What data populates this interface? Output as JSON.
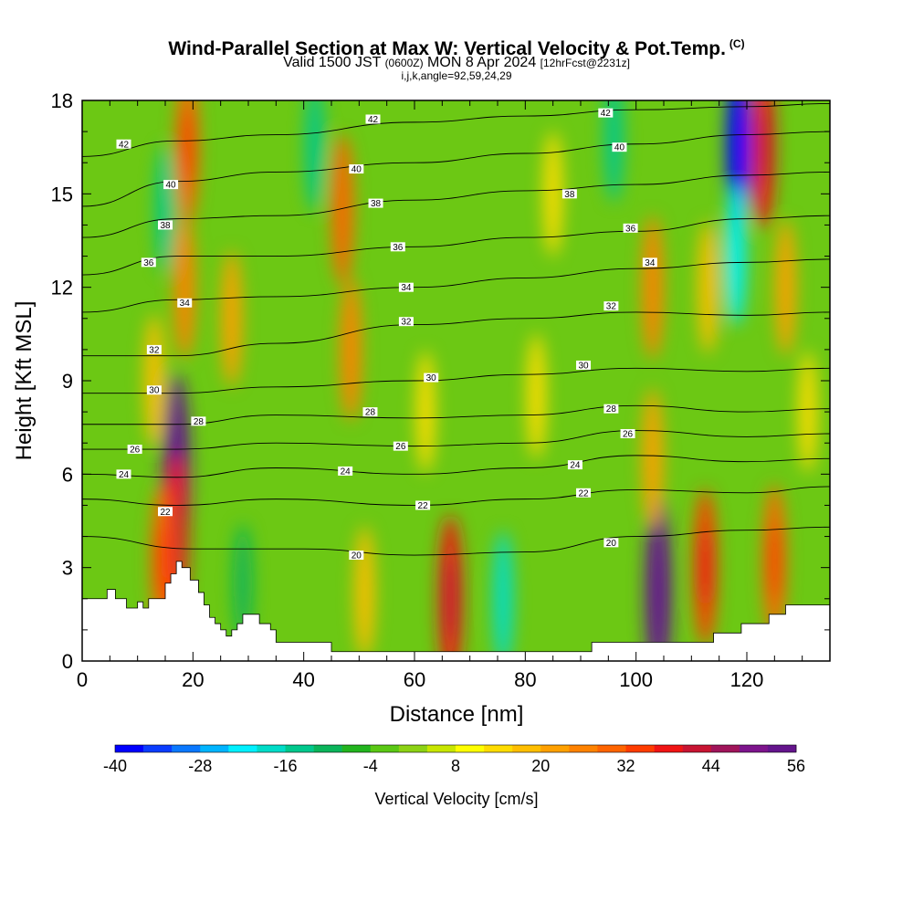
{
  "header": {
    "title": "Wind-Parallel Section at Max W: Vertical Velocity & Pot.Temp.",
    "copyright": "(C)",
    "valid_prefix": "Valid 1500 JST",
    "valid_utc": "(0600Z)",
    "valid_date": "MON 8 Apr 2024",
    "forecast": "[12hrFcst@2231z]",
    "indices": "i,j,k,angle=92,59,24,29"
  },
  "colors": {
    "scale": [
      "#0000ff",
      "#0a3cff",
      "#0a78ff",
      "#00b4ff",
      "#00f0ff",
      "#00dcc8",
      "#00c88c",
      "#0ab45a",
      "#22b41e",
      "#5ac814",
      "#8cd214",
      "#c8e600",
      "#ffff00",
      "#ffdc00",
      "#ffbe00",
      "#ffa000",
      "#ff8200",
      "#ff6400",
      "#ff3c00",
      "#f01414",
      "#c81432",
      "#a0145a",
      "#7d148c",
      "#64148c"
    ],
    "terrain": "#ffffff",
    "contour": "#000000"
  },
  "chart_data": {
    "type": "heatmap",
    "title": "Wind-Parallel Section at Max W: Vertical Velocity & Pot.Temp.",
    "xlabel": "Distance [nm]",
    "ylabel": "Height [Kft MSL]",
    "xlim": [
      0,
      135
    ],
    "ylim": [
      0,
      18
    ],
    "x_ticks": [
      "0",
      "20",
      "40",
      "60",
      "80",
      "100",
      "120"
    ],
    "y_ticks": [
      "0",
      "3",
      "6",
      "9",
      "12",
      "15",
      "18"
    ],
    "colorbar": {
      "label": "Vertical Velocity [cm/s]",
      "min": -40,
      "max": 56,
      "step": 4,
      "tick_labels": [
        "-40",
        "-28",
        "-16",
        "-4",
        "8",
        "20",
        "32",
        "44",
        "56"
      ]
    },
    "velocity_cells": [
      {
        "x": 17,
        "y": 6.0,
        "w": 56
      },
      {
        "x": 17,
        "y": 4.0,
        "w": 36
      },
      {
        "x": 14.5,
        "y": 3.2,
        "w": 30
      },
      {
        "x": 18.5,
        "y": 12.0,
        "w": 24
      },
      {
        "x": 19,
        "y": 16.5,
        "w": 30
      },
      {
        "x": 13,
        "y": 9.0,
        "w": 18
      },
      {
        "x": 15,
        "y": 14.5,
        "w": -16
      },
      {
        "x": 27,
        "y": 11.0,
        "w": 20
      },
      {
        "x": 29,
        "y": 2.5,
        "w": -10
      },
      {
        "x": 42,
        "y": 16.5,
        "w": -16
      },
      {
        "x": 47,
        "y": 14.5,
        "w": 28
      },
      {
        "x": 48.5,
        "y": 10.0,
        "w": 24
      },
      {
        "x": 51,
        "y": 2.2,
        "w": 18
      },
      {
        "x": 66.5,
        "y": 2.0,
        "w": 38
      },
      {
        "x": 62,
        "y": 8.0,
        "w": 12
      },
      {
        "x": 76,
        "y": 2.0,
        "w": -20
      },
      {
        "x": 82,
        "y": 8.5,
        "w": 14
      },
      {
        "x": 85,
        "y": 15.0,
        "w": 14
      },
      {
        "x": 96,
        "y": 16.8,
        "w": -16
      },
      {
        "x": 104,
        "y": 2.2,
        "w": 52
      },
      {
        "x": 103,
        "y": 6.5,
        "w": 22
      },
      {
        "x": 103,
        "y": 12.0,
        "w": 24
      },
      {
        "x": 112.5,
        "y": 3.0,
        "w": 32
      },
      {
        "x": 113,
        "y": 12.0,
        "w": 18
      },
      {
        "x": 118.5,
        "y": 16.5,
        "w": -40
      },
      {
        "x": 118,
        "y": 13.0,
        "w": -22
      },
      {
        "x": 123,
        "y": 16.5,
        "w": 36
      },
      {
        "x": 125,
        "y": 3.2,
        "w": 30
      },
      {
        "x": 127,
        "y": 12.0,
        "w": 20
      },
      {
        "x": 131,
        "y": 8.0,
        "w": 12
      }
    ],
    "terrain": {
      "x": [
        0,
        4.5,
        4.5,
        6,
        6,
        8,
        8,
        10,
        10,
        11,
        11,
        12,
        12,
        15,
        15,
        16,
        16,
        17,
        17,
        18,
        18,
        19.5,
        19.5,
        21,
        21,
        22,
        22,
        23,
        23,
        24,
        24,
        25,
        25,
        26,
        26,
        27,
        27,
        28,
        28,
        29,
        29,
        32,
        32,
        34,
        34,
        35,
        35,
        40,
        40,
        45,
        45,
        67,
        67,
        68,
        68,
        70,
        70,
        75,
        75,
        80,
        80,
        86,
        86,
        89,
        89,
        92,
        92,
        114,
        114,
        116,
        116,
        119,
        119,
        124,
        124,
        126,
        126,
        127,
        127,
        128,
        128,
        130,
        130,
        135
      ],
      "y": [
        2.0,
        2.0,
        2.3,
        2.3,
        2.0,
        2.0,
        1.7,
        1.7,
        1.9,
        1.9,
        1.7,
        1.7,
        2.0,
        2.0,
        2.5,
        2.5,
        2.8,
        2.8,
        3.2,
        3.2,
        3.0,
        3.0,
        2.6,
        2.6,
        2.2,
        2.2,
        1.8,
        1.8,
        1.4,
        1.4,
        1.2,
        1.2,
        1.0,
        1.0,
        0.8,
        0.8,
        1.0,
        1.0,
        1.2,
        1.2,
        1.5,
        1.5,
        1.2,
        1.2,
        1.0,
        1.0,
        0.6,
        0.6,
        0.6,
        0.6,
        0.3,
        0.3,
        0.3,
        0.3,
        0.3,
        0.3,
        0.3,
        0.3,
        0.3,
        0.3,
        0.3,
        0.3,
        0.3,
        0.3,
        0.3,
        0.3,
        0.6,
        0.6,
        0.9,
        0.9,
        0.9,
        0.9,
        1.2,
        1.2,
        1.5,
        1.5,
        1.5,
        1.5,
        1.8,
        1.8,
        1.8,
        1.8,
        1.8,
        1.8
      ]
    },
    "potential_temperature": [
      {
        "theta": 20,
        "points": [
          [
            0,
            4.0
          ],
          [
            20,
            3.6
          ],
          [
            40,
            3.6
          ],
          [
            60,
            3.4
          ],
          [
            80,
            3.5
          ],
          [
            100,
            4.0
          ],
          [
            120,
            4.2
          ],
          [
            135,
            4.3
          ]
        ]
      },
      {
        "theta": 22,
        "points": [
          [
            0,
            5.2
          ],
          [
            17,
            5.0
          ],
          [
            35,
            5.2
          ],
          [
            60,
            5.0
          ],
          [
            80,
            5.2
          ],
          [
            100,
            5.5
          ],
          [
            120,
            5.4
          ],
          [
            135,
            5.6
          ]
        ]
      },
      {
        "theta": 24,
        "points": [
          [
            0,
            6.0
          ],
          [
            17,
            5.9
          ],
          [
            35,
            6.2
          ],
          [
            60,
            6.0
          ],
          [
            80,
            6.2
          ],
          [
            100,
            6.6
          ],
          [
            120,
            6.4
          ],
          [
            135,
            6.5
          ]
        ]
      },
      {
        "theta": 26,
        "points": [
          [
            0,
            6.8
          ],
          [
            17,
            6.8
          ],
          [
            35,
            7.0
          ],
          [
            60,
            6.9
          ],
          [
            80,
            7.0
          ],
          [
            100,
            7.4
          ],
          [
            120,
            7.2
          ],
          [
            135,
            7.3
          ]
        ]
      },
      {
        "theta": 28,
        "points": [
          [
            0,
            7.6
          ],
          [
            17,
            7.6
          ],
          [
            35,
            7.9
          ],
          [
            60,
            7.8
          ],
          [
            80,
            7.9
          ],
          [
            100,
            8.2
          ],
          [
            120,
            8.0
          ],
          [
            135,
            8.1
          ]
        ]
      },
      {
        "theta": 30,
        "points": [
          [
            0,
            8.6
          ],
          [
            17,
            8.6
          ],
          [
            35,
            8.8
          ],
          [
            60,
            9.0
          ],
          [
            80,
            9.2
          ],
          [
            100,
            9.4
          ],
          [
            120,
            9.3
          ],
          [
            135,
            9.4
          ]
        ]
      },
      {
        "theta": 32,
        "points": [
          [
            0,
            9.8
          ],
          [
            17,
            9.8
          ],
          [
            35,
            10.2
          ],
          [
            60,
            10.8
          ],
          [
            80,
            11.0
          ],
          [
            100,
            11.2
          ],
          [
            120,
            11.1
          ],
          [
            135,
            11.2
          ]
        ]
      },
      {
        "theta": 34,
        "points": [
          [
            0,
            11.2
          ],
          [
            17,
            11.6
          ],
          [
            35,
            11.7
          ],
          [
            60,
            12.0
          ],
          [
            80,
            12.3
          ],
          [
            100,
            12.6
          ],
          [
            120,
            12.8
          ],
          [
            135,
            12.9
          ]
        ]
      },
      {
        "theta": 36,
        "points": [
          [
            0,
            12.4
          ],
          [
            17,
            13.0
          ],
          [
            35,
            13.0
          ],
          [
            60,
            13.3
          ],
          [
            80,
            13.6
          ],
          [
            100,
            13.8
          ],
          [
            120,
            14.2
          ],
          [
            135,
            14.3
          ]
        ]
      },
      {
        "theta": 38,
        "points": [
          [
            0,
            13.6
          ],
          [
            17,
            14.2
          ],
          [
            35,
            14.3
          ],
          [
            60,
            14.8
          ],
          [
            80,
            15.1
          ],
          [
            100,
            15.3
          ],
          [
            120,
            15.6
          ],
          [
            135,
            15.7
          ]
        ]
      },
      {
        "theta": 40,
        "points": [
          [
            0,
            14.6
          ],
          [
            17,
            15.4
          ],
          [
            35,
            15.7
          ],
          [
            60,
            16.0
          ],
          [
            80,
            16.3
          ],
          [
            100,
            16.6
          ],
          [
            120,
            16.9
          ],
          [
            135,
            17.0
          ]
        ]
      },
      {
        "theta": 42,
        "points": [
          [
            0,
            16.2
          ],
          [
            17,
            16.7
          ],
          [
            35,
            16.9
          ],
          [
            60,
            17.3
          ],
          [
            80,
            17.5
          ],
          [
            100,
            17.7
          ],
          [
            120,
            17.8
          ],
          [
            135,
            17.9
          ]
        ]
      }
    ],
    "contour_labels": [
      {
        "x": 7.5,
        "y": 16.6,
        "text": "42"
      },
      {
        "x": 52.5,
        "y": 17.4,
        "text": "42"
      },
      {
        "x": 94.5,
        "y": 17.6,
        "text": "42"
      },
      {
        "x": 16,
        "y": 15.3,
        "text": "40"
      },
      {
        "x": 49.5,
        "y": 15.8,
        "text": "40"
      },
      {
        "x": 97,
        "y": 16.5,
        "text": "40"
      },
      {
        "x": 15,
        "y": 14.0,
        "text": "38"
      },
      {
        "x": 53,
        "y": 14.7,
        "text": "38"
      },
      {
        "x": 88,
        "y": 15.0,
        "text": "38"
      },
      {
        "x": 12,
        "y": 12.8,
        "text": "36"
      },
      {
        "x": 57,
        "y": 13.3,
        "text": "36"
      },
      {
        "x": 99,
        "y": 13.9,
        "text": "36"
      },
      {
        "x": 18.5,
        "y": 11.5,
        "text": "34"
      },
      {
        "x": 58.5,
        "y": 12.0,
        "text": "34"
      },
      {
        "x": 102.5,
        "y": 12.8,
        "text": "34"
      },
      {
        "x": 13,
        "y": 10.0,
        "text": "32"
      },
      {
        "x": 58.5,
        "y": 10.9,
        "text": "32"
      },
      {
        "x": 95.5,
        "y": 11.4,
        "text": "32"
      },
      {
        "x": 13,
        "y": 8.7,
        "text": "30"
      },
      {
        "x": 63,
        "y": 9.1,
        "text": "30"
      },
      {
        "x": 90.5,
        "y": 9.5,
        "text": "30"
      },
      {
        "x": 21,
        "y": 7.7,
        "text": "28"
      },
      {
        "x": 52,
        "y": 8.0,
        "text": "28"
      },
      {
        "x": 95.5,
        "y": 8.1,
        "text": "28"
      },
      {
        "x": 9.5,
        "y": 6.8,
        "text": "26"
      },
      {
        "x": 57.5,
        "y": 6.9,
        "text": "26"
      },
      {
        "x": 98.5,
        "y": 7.3,
        "text": "26"
      },
      {
        "x": 7.5,
        "y": 6.0,
        "text": "24"
      },
      {
        "x": 47.5,
        "y": 6.1,
        "text": "24"
      },
      {
        "x": 89,
        "y": 6.3,
        "text": "24"
      },
      {
        "x": 15,
        "y": 4.8,
        "text": "22"
      },
      {
        "x": 61.5,
        "y": 5.0,
        "text": "22"
      },
      {
        "x": 90.5,
        "y": 5.4,
        "text": "22"
      },
      {
        "x": 49.5,
        "y": 3.4,
        "text": "20"
      },
      {
        "x": 95.5,
        "y": 3.8,
        "text": "20"
      }
    ]
  }
}
